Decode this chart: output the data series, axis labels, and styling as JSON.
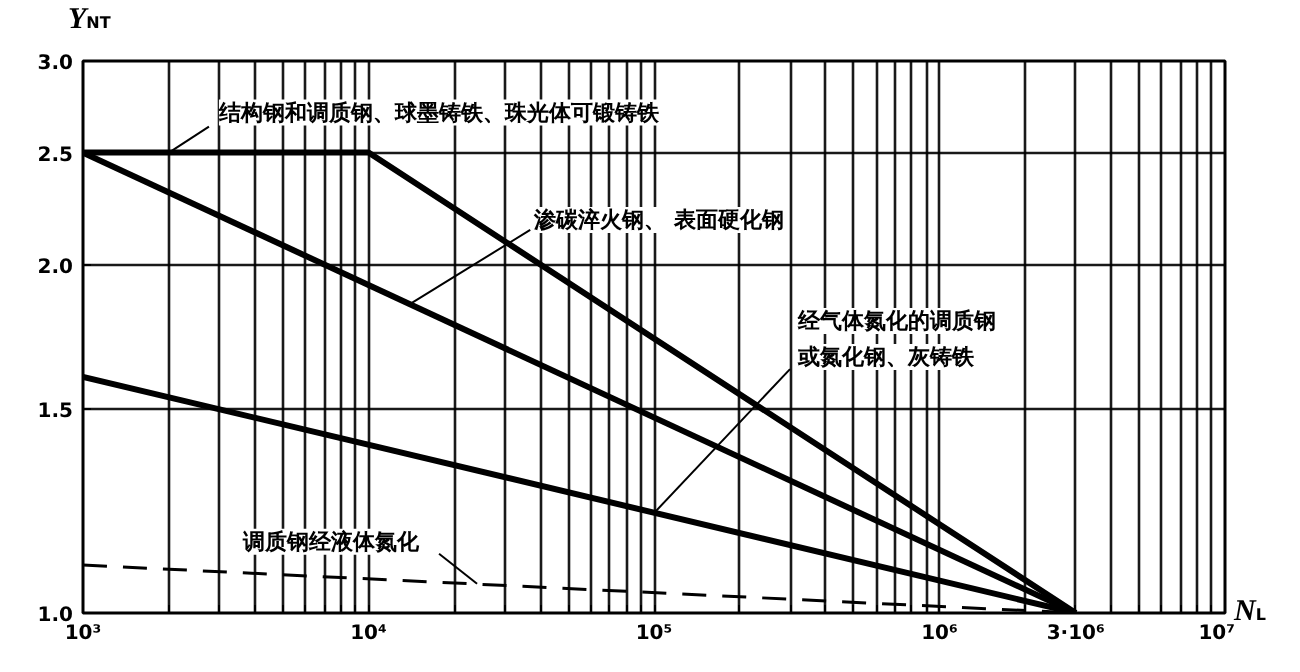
{
  "chart_data": {
    "type": "line",
    "xlabel": "N$_{L}$",
    "ylabel": "Y$_{NT}$",
    "log": "xy",
    "grid": true,
    "marker": "none",
    "xlim": [
      1000,
      10000000
    ],
    "ylim": [
      1.0,
      3.0
    ],
    "xticks": [
      {
        "value": 1000,
        "label": "10³"
      },
      {
        "value": 2000,
        "label": null
      },
      {
        "value": 3000,
        "label": null
      },
      {
        "value": 4000,
        "label": null
      },
      {
        "value": 5000,
        "label": null
      },
      {
        "value": 6000,
        "label": null
      },
      {
        "value": 7000,
        "label": null
      },
      {
        "value": 8000,
        "label": null
      },
      {
        "value": 9000,
        "label": null
      },
      {
        "value": 10000,
        "label": "10⁴"
      },
      {
        "value": 20000,
        "label": null
      },
      {
        "value": 30000,
        "label": null
      },
      {
        "value": 40000,
        "label": null
      },
      {
        "value": 50000,
        "label": null
      },
      {
        "value": 60000,
        "label": null
      },
      {
        "value": 70000,
        "label": null
      },
      {
        "value": 80000,
        "label": null
      },
      {
        "value": 90000,
        "label": null
      },
      {
        "value": 100000,
        "label": "10⁵"
      },
      {
        "value": 200000,
        "label": null
      },
      {
        "value": 300000,
        "label": null
      },
      {
        "value": 400000,
        "label": null
      },
      {
        "value": 500000,
        "label": null
      },
      {
        "value": 600000,
        "label": null
      },
      {
        "value": 700000,
        "label": null
      },
      {
        "value": 800000,
        "label": null
      },
      {
        "value": 900000,
        "label": null
      },
      {
        "value": 1000000,
        "label": "10⁶"
      },
      {
        "value": 2000000,
        "label": null
      },
      {
        "value": 3000000,
        "label": "3·10⁶"
      },
      {
        "value": 4000000,
        "label": null
      },
      {
        "value": 5000000,
        "label": null
      },
      {
        "value": 6000000,
        "label": null
      },
      {
        "value": 7000000,
        "label": null
      },
      {
        "value": 8000000,
        "label": null
      },
      {
        "value": 9000000,
        "label": null
      },
      {
        "value": 10000000,
        "label": "10⁷"
      }
    ],
    "yticks": [
      {
        "value": 1.0,
        "label": "1.0"
      },
      {
        "value": 1.5,
        "label": "1.5"
      },
      {
        "value": 2.0,
        "label": "2.0"
      },
      {
        "value": 2.5,
        "label": "2.5"
      },
      {
        "value": 3.0,
        "label": "3.0"
      }
    ],
    "series": [
      {
        "color": "#000000",
        "line_style": "solid",
        "x": [
          1000,
          10000,
          3000000
        ],
        "values": [
          2.5,
          2.5,
          1.0
        ]
      },
      {
        "color": "#000000",
        "line_style": "solid",
        "x": [
          1000,
          3000000
        ],
        "values": [
          2.5,
          1.0
        ]
      },
      {
        "color": "#000000",
        "line_style": "solid",
        "x": [
          1000,
          3000000
        ],
        "values": [
          1.6,
          1.0
        ]
      },
      {
        "color": "#000000",
        "line_style": "dashed",
        "x": [
          1000,
          3000000
        ],
        "values": [
          1.1,
          1.0
        ]
      }
    ],
    "annotations": [
      {
        "text": "结构钢和调质钢、球墨铸铁、珠光体可锻铸铁",
        "x": 2000,
        "y": 2.5
      },
      {
        "text": "渗碳淬火钢、 表面硬化钢",
        "x": 14000,
        "y": 1.85
      },
      {
        "text": "经气体氮化的调质钢或氮化钢、灰铸铁",
        "x": 100000,
        "y": 1.22
      },
      {
        "text": "调质钢经液体氮化",
        "x": 24000,
        "y": 1.06
      }
    ]
  }
}
